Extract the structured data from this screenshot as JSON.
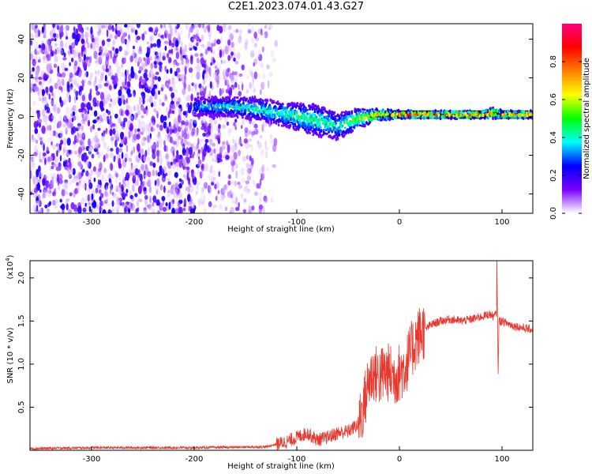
{
  "title": "C2E1.2023.074.01.43.G27",
  "chart_data": [
    {
      "type": "heatmap",
      "xlabel": "Height of straight line (km)",
      "ylabel": "Frequency (Hz)",
      "xlim": [
        -360,
        130
      ],
      "ylim": [
        -50,
        48
      ],
      "xticks": [
        -300,
        -200,
        -100,
        0,
        100
      ],
      "yticks": [
        -40,
        -20,
        0,
        20,
        40
      ],
      "colorbar": {
        "label": "Normalized spectral amplitude",
        "range": [
          0.0,
          1.0
        ],
        "ticks": [
          "0.0",
          "0.2",
          "0.4",
          "0.6",
          "0.8"
        ],
        "colors": [
          "#ffffff",
          "#7a00ff",
          "#0000ff",
          "#00ffff",
          "#00ff00",
          "#ffff00",
          "#ff8000",
          "#ff0000",
          "#ff0080"
        ]
      },
      "noise_region_x": [
        -360,
        -140
      ],
      "signal_track": {
        "x": [
          -200,
          -180,
          -160,
          -140,
          -120,
          -100,
          -80,
          -60,
          -40,
          -20,
          0,
          20,
          40,
          60,
          80,
          90,
          100,
          130
        ],
        "freq": [
          5,
          5,
          5,
          4,
          2,
          0,
          -2,
          -5,
          -1,
          1,
          1,
          1,
          1,
          1,
          1,
          2,
          1,
          1
        ],
        "width": [
          5,
          5,
          5,
          6,
          6,
          7,
          8,
          7,
          5,
          3,
          2,
          2,
          2,
          2,
          2,
          3,
          2,
          2
        ],
        "amplitude": [
          0.35,
          0.4,
          0.45,
          0.45,
          0.45,
          0.5,
          0.5,
          0.45,
          0.6,
          0.75,
          0.85,
          0.85,
          0.85,
          0.85,
          0.85,
          0.8,
          0.85,
          0.85
        ]
      }
    },
    {
      "type": "line",
      "xlabel": "Height of straight line (km)",
      "ylabel": "SNR (10 * v/v)",
      "multiplier_label": "(x10",
      "multiplier_exp": "4",
      "multiplier_close": ")",
      "xlim": [
        -360,
        130
      ],
      "ylim": [
        0,
        2.2
      ],
      "xticks": [
        -300,
        -200,
        -100,
        0,
        100
      ],
      "yticks": [
        "0.5",
        "1.0",
        "1.5",
        "2.0"
      ],
      "color": "#e8392f",
      "series": [
        {
          "x": [
            -360,
            -300,
            -200,
            -130,
            -110,
            -100,
            -90,
            -80,
            -70,
            -60,
            -50,
            -40,
            -35,
            -30,
            -25,
            -20,
            -15,
            -10,
            -5,
            0,
            5,
            10,
            15,
            20,
            30,
            40,
            50,
            60,
            70,
            80,
            88,
            92,
            95,
            96,
            97,
            100,
            110,
            120,
            130
          ],
          "y": [
            0.02,
            0.03,
            0.03,
            0.04,
            0.1,
            0.15,
            0.2,
            0.12,
            0.15,
            0.2,
            0.22,
            0.3,
            0.5,
            0.8,
            0.9,
            0.85,
            0.9,
            0.9,
            0.85,
            0.9,
            0.95,
            1.1,
            1.25,
            1.35,
            1.45,
            1.5,
            1.52,
            1.5,
            1.52,
            1.55,
            1.58,
            1.55,
            1.6,
            0.72,
            1.5,
            1.5,
            1.45,
            1.42,
            1.4
          ]
        }
      ]
    }
  ]
}
